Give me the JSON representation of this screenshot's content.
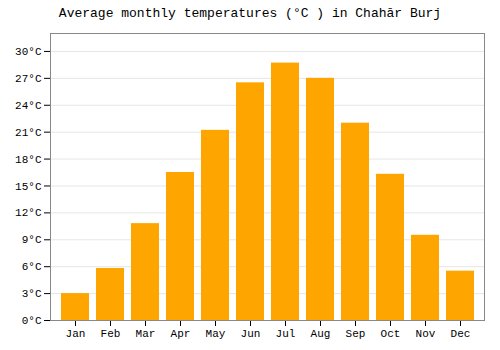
{
  "chart_data": {
    "type": "bar",
    "title": "Average monthly temperatures (°C ) in Chahār Burj",
    "categories": [
      "Jan",
      "Feb",
      "Mar",
      "Apr",
      "May",
      "Jun",
      "Jul",
      "Aug",
      "Sep",
      "Oct",
      "Nov",
      "Dec"
    ],
    "values": [
      3.0,
      5.8,
      10.8,
      16.5,
      21.2,
      26.5,
      28.7,
      27.0,
      22.0,
      16.3,
      9.5,
      5.5
    ],
    "color": "#FFA500",
    "ylim": [
      0,
      32
    ],
    "yticks": [
      {
        "value": 0,
        "label": "0°C"
      },
      {
        "value": 3,
        "label": "3°C"
      },
      {
        "value": 6,
        "label": "6°C"
      },
      {
        "value": 9,
        "label": "9°C"
      },
      {
        "value": 12,
        "label": "12°C"
      },
      {
        "value": 15,
        "label": "15°C"
      },
      {
        "value": 18,
        "label": "18°C"
      },
      {
        "value": 21,
        "label": "21°C"
      },
      {
        "value": 24,
        "label": "24°C"
      },
      {
        "value": 27,
        "label": "27°C"
      },
      {
        "value": 30,
        "label": "30°C"
      }
    ],
    "grid": true
  }
}
